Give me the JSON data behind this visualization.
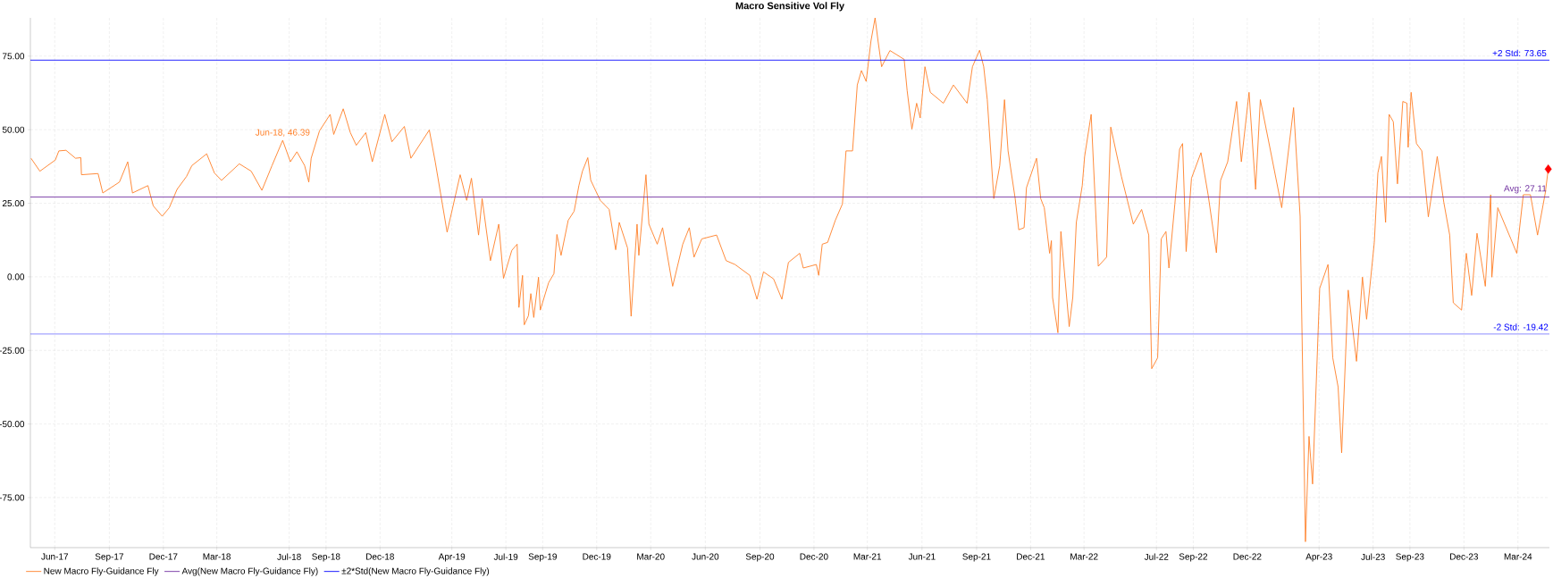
{
  "chart_data": {
    "type": "line",
    "title": "Macro Sensitive Vol Fly",
    "xlim": [
      "2017-04-21",
      "2024-04-23"
    ],
    "ylim": [
      -92,
      88
    ],
    "xticks": [
      {
        "value": "2017-06",
        "label": "Jun-17"
      },
      {
        "value": "2017-09",
        "label": "Sep-17"
      },
      {
        "value": "2017-12",
        "label": "Dec-17"
      },
      {
        "value": "2018-03",
        "label": "Mar-18"
      },
      {
        "value": "2018-07",
        "label": "Jul-18"
      },
      {
        "value": "2018-09",
        "label": "Sep-18"
      },
      {
        "value": "2018-12",
        "label": "Dec-18"
      },
      {
        "value": "2019-04",
        "label": "Apr-19"
      },
      {
        "value": "2019-07",
        "label": "Jul-19"
      },
      {
        "value": "2019-09",
        "label": "Sep-19"
      },
      {
        "value": "2019-12",
        "label": "Dec-19"
      },
      {
        "value": "2020-03",
        "label": "Mar-20"
      },
      {
        "value": "2020-06",
        "label": "Jun-20"
      },
      {
        "value": "2020-09",
        "label": "Sep-20"
      },
      {
        "value": "2020-12",
        "label": "Dec-20"
      },
      {
        "value": "2021-03",
        "label": "Mar-21"
      },
      {
        "value": "2021-06",
        "label": "Jun-21"
      },
      {
        "value": "2021-09",
        "label": "Sep-21"
      },
      {
        "value": "2021-12",
        "label": "Dec-21"
      },
      {
        "value": "2022-03",
        "label": "Mar-22"
      },
      {
        "value": "2022-07",
        "label": "Jul-22"
      },
      {
        "value": "2022-09",
        "label": "Sep-22"
      },
      {
        "value": "2022-12",
        "label": "Dec-22"
      },
      {
        "value": "2023-04",
        "label": "Apr-23"
      },
      {
        "value": "2023-07",
        "label": "Jul-23"
      },
      {
        "value": "2023-09",
        "label": "Sep-23"
      },
      {
        "value": "2023-12",
        "label": "Dec-23"
      },
      {
        "value": "2024-03",
        "label": "Mar-24"
      }
    ],
    "yticks": [
      {
        "value": -75,
        "label": "-75.00"
      },
      {
        "value": -50,
        "label": "-50.00"
      },
      {
        "value": -25,
        "label": "-25.00"
      },
      {
        "value": 0,
        "label": "0.00"
      },
      {
        "value": 25,
        "label": "25.00"
      },
      {
        "value": 50,
        "label": "50.00"
      },
      {
        "value": 75,
        "label": "75.00"
      }
    ],
    "grid": true,
    "legend": "bottom",
    "marker": "none",
    "line_style": "solid",
    "series": [
      {
        "name": "New Macro Fly-Guidance Fly",
        "color": "#ff7f27",
        "x": [
          "2017-04-22",
          "2017-05-07",
          "2017-06-02",
          "2017-06-08",
          "2017-06-20",
          "2017-07-06",
          "2017-07-15",
          "2017-07-16",
          "2017-08-13",
          "2017-08-21",
          "2017-09-18",
          "2017-10-02",
          "2017-10-10",
          "2017-11-05",
          "2017-11-14",
          "2017-11-29",
          "2017-12-11",
          "2017-12-24",
          "2018-01-09",
          "2018-01-18",
          "2018-02-12",
          "2018-02-25",
          "2018-03-09",
          "2018-04-08",
          "2018-04-28",
          "2018-05-16",
          "2018-06-02",
          "2018-06-20",
          "2018-07-03",
          "2018-07-14",
          "2018-07-27",
          "2018-08-03",
          "2018-08-07",
          "2018-08-21",
          "2018-09-08",
          "2018-09-14",
          "2018-09-30",
          "2018-10-12",
          "2018-10-22",
          "2018-11-07",
          "2018-11-18",
          "2018-12-09",
          "2018-12-21",
          "2019-01-11",
          "2019-01-22",
          "2019-02-22",
          "2019-03-04",
          "2019-03-24",
          "2019-04-15",
          "2019-04-26",
          "2019-05-04",
          "2019-05-16",
          "2019-05-22",
          "2019-06-05",
          "2019-06-19",
          "2019-06-27",
          "2019-07-11",
          "2019-07-20",
          "2019-07-23",
          "2019-07-29",
          "2019-08-01",
          "2019-08-08",
          "2019-08-12",
          "2019-08-17",
          "2019-08-25",
          "2019-08-28",
          "2019-09-11",
          "2019-09-20",
          "2019-09-25",
          "2019-10-02",
          "2019-10-14",
          "2019-10-24",
          "2019-11-01",
          "2019-11-07",
          "2019-11-16",
          "2019-11-21",
          "2019-12-07",
          "2019-12-22",
          "2020-01-02",
          "2020-01-08",
          "2020-01-22",
          "2020-01-28",
          "2020-02-07",
          "2020-02-10",
          "2020-02-22",
          "2020-02-27",
          "2020-03-12",
          "2020-03-21",
          "2020-04-07",
          "2020-04-24",
          "2020-05-05",
          "2020-05-13",
          "2020-05-26",
          "2020-06-20",
          "2020-07-06",
          "2020-07-21",
          "2020-08-15",
          "2020-08-27",
          "2020-09-07",
          "2020-09-24",
          "2020-10-08",
          "2020-10-19",
          "2020-11-07",
          "2020-11-13",
          "2020-12-05",
          "2020-12-09",
          "2020-12-15",
          "2020-12-24",
          "2021-01-06",
          "2021-01-18",
          "2021-01-24",
          "2021-02-04",
          "2021-02-12",
          "2021-02-19",
          "2021-02-27",
          "2021-03-07",
          "2021-03-14",
          "2021-03-19",
          "2021-03-25",
          "2021-04-08",
          "2021-05-02",
          "2021-05-07",
          "2021-05-15",
          "2021-05-23",
          "2021-05-29",
          "2021-06-06",
          "2021-06-15",
          "2021-07-07",
          "2021-07-24",
          "2021-08-16",
          "2021-08-25",
          "2021-09-06",
          "2021-09-13",
          "2021-09-19",
          "2021-09-30",
          "2021-10-10",
          "2021-10-18",
          "2021-10-24",
          "2021-11-05",
          "2021-11-11",
          "2021-11-20",
          "2021-11-24",
          "2021-12-11",
          "2021-12-18",
          "2021-12-24",
          "2022-01-02",
          "2022-01-05",
          "2022-01-07",
          "2022-01-16",
          "2022-01-21",
          "2022-02-04",
          "2022-02-10",
          "2022-02-16",
          "2022-02-26",
          "2022-03-02",
          "2022-03-13",
          "2022-03-25",
          "2022-04-08",
          "2022-04-15",
          "2022-05-03",
          "2022-05-23",
          "2022-06-06",
          "2022-06-18",
          "2022-06-23",
          "2022-07-03",
          "2022-07-09",
          "2022-07-17",
          "2022-07-22",
          "2022-08-01",
          "2022-08-09",
          "2022-08-14",
          "2022-08-20",
          "2022-08-29",
          "2022-09-14",
          "2022-09-26",
          "2022-10-10",
          "2022-10-17",
          "2022-10-29",
          "2022-11-13",
          "2022-11-21",
          "2022-12-04",
          "2022-12-15",
          "2022-12-23",
          "2023-01-08",
          "2023-01-28",
          "2023-02-17",
          "2023-02-28",
          "2023-03-09",
          "2023-03-15",
          "2023-03-21",
          "2023-04-02",
          "2023-04-16",
          "2023-04-24",
          "2023-05-03",
          "2023-05-09",
          "2023-05-20",
          "2023-06-03",
          "2023-06-13",
          "2023-06-20",
          "2023-07-03",
          "2023-07-09",
          "2023-07-15",
          "2023-07-22",
          "2023-07-28",
          "2023-08-04",
          "2023-08-11",
          "2023-08-20",
          "2023-08-27",
          "2023-08-29",
          "2023-09-03",
          "2023-09-12",
          "2023-09-21",
          "2023-10-02",
          "2023-10-17",
          "2023-10-28",
          "2023-11-07",
          "2023-11-13",
          "2023-11-27",
          "2023-12-05",
          "2023-12-14",
          "2023-12-23",
          "2024-01-06",
          "2024-01-15",
          "2024-01-17",
          "2024-01-27",
          "2024-02-18",
          "2024-02-28",
          "2024-03-10",
          "2024-03-22",
          "2024-04-03",
          "2024-04-16",
          "2024-04-21"
        ],
        "values": [
          40.3,
          35.9,
          39.7,
          42.8,
          43.0,
          40.3,
          40.5,
          34.7,
          35.1,
          28.5,
          32.2,
          39.1,
          28.5,
          31.0,
          24.1,
          20.6,
          23.5,
          29.7,
          34.1,
          37.8,
          41.8,
          35.3,
          32.8,
          38.4,
          35.9,
          29.4,
          37.8,
          46.39,
          39.1,
          42.5,
          37.8,
          32.2,
          40.3,
          49.6,
          55.2,
          48.4,
          57.1,
          49.0,
          44.7,
          49.0,
          39.1,
          55.2,
          45.9,
          51.1,
          40.3,
          49.9,
          39.1,
          15.2,
          34.7,
          26.0,
          33.5,
          14.2,
          26.6,
          5.5,
          17.9,
          -0.5,
          9.0,
          11.1,
          -10.4,
          0.5,
          -16.3,
          -13.2,
          -5.7,
          -13.8,
          -0.1,
          -11.3,
          -2.0,
          1.1,
          14.4,
          7.3,
          19.2,
          22.3,
          31.0,
          35.9,
          40.5,
          32.8,
          26.0,
          22.9,
          9.2,
          18.5,
          9.8,
          -13.4,
          17.9,
          7.3,
          34.7,
          17.9,
          11.1,
          16.7,
          -3.2,
          11.1,
          16.7,
          6.7,
          12.9,
          14.2,
          5.5,
          4.2,
          0.5,
          -7.6,
          1.7,
          -0.7,
          -7.6,
          4.9,
          8.0,
          3.0,
          4.2,
          0.5,
          11.1,
          11.7,
          19.2,
          24.8,
          42.8,
          42.8,
          65.2,
          70.1,
          66.4,
          80.1,
          88.0,
          80.1,
          71.4,
          76.9,
          73.9,
          63.3,
          50.2,
          59.0,
          54.0,
          71.4,
          62.7,
          59.0,
          65.2,
          59.0,
          71.4,
          77.0,
          71.4,
          60.2,
          26.6,
          37.8,
          60.2,
          42.8,
          26.6,
          16.0,
          16.7,
          30.3,
          40.3,
          26.6,
          23.5,
          8.0,
          12.3,
          -7.0,
          -19.0,
          15.4,
          -16.9,
          -7.0,
          18.5,
          31.0,
          40.9,
          55.2,
          3.6,
          6.7,
          50.9,
          34.1,
          17.9,
          22.9,
          14.2,
          -31.2,
          -27.5,
          12.9,
          15.4,
          3.0,
          24.8,
          43.4,
          45.3,
          8.6,
          33.5,
          42.2,
          27.9,
          8.2,
          32.8,
          39.1,
          59.6,
          39.1,
          62.7,
          29.7,
          60.2,
          44.0,
          23.5,
          57.5,
          20.6,
          -90.0,
          -54.2,
          -70.4,
          -3.9,
          4.2,
          -27.5,
          -37.4,
          -59.8,
          -4.5,
          -28.7,
          -0.1,
          -14.4,
          11.7,
          35.3,
          40.9,
          18.5,
          55.2,
          52.7,
          31.6,
          59.6,
          59.0,
          44.0,
          62.7,
          45.3,
          42.8,
          20.4,
          40.9,
          25.4,
          14.2,
          -8.8,
          -11.3,
          8.0,
          -6.3,
          14.8,
          -3.2,
          27.9,
          -0.1,
          23.5,
          12.9,
          8.0,
          27.9,
          27.9,
          14.2,
          28.5,
          36.6
        ]
      },
      {
        "name": "Avg(New Macro Fly-Guidance Fly)",
        "color": "#7030a0",
        "x": [
          "2017-04-21",
          "2024-04-23"
        ],
        "values": [
          27.11,
          27.11
        ]
      },
      {
        "name": "±2*Std(New Macro Fly-Guidance Fly)",
        "color": "#0000ff",
        "x": [
          "2017-04-21",
          "2024-04-23"
        ],
        "values": [
          73.65,
          73.65
        ]
      },
      {
        "type": "scatter",
        "color": "#ff0000",
        "marker": "diamond",
        "x": [
          "2024-04-21"
        ],
        "values": [
          36.6
        ]
      }
    ],
    "annotations": [
      {
        "text": "Jun-18, 46.39",
        "x": "2018-06-20",
        "y": 46.39
      },
      {
        "text": "+2 Std: 73.65",
        "x": "2024-04-20",
        "y": 73.65
      },
      {
        "text": "Avg: 27.11",
        "x": "2024-04-20",
        "y": 27.11
      }
    ],
    "ref_lines": [
      {
        "axis": "y",
        "value": -19.42,
        "label": "-2 Std: -19.42",
        "color": "#0000ff"
      }
    ]
  }
}
